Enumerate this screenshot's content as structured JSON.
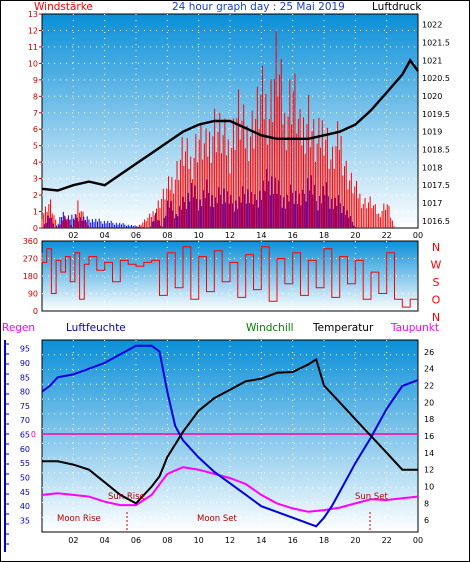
{
  "header": {
    "left_label": "Windstärke",
    "title": "24 hour graph day : 25 Mai 2019",
    "right_label": "Luftdruck"
  },
  "legend_bottom": {
    "regen": "Regen",
    "luftfeuchte": "Luftfeuchte",
    "windchill": "Windchill",
    "temperatur": "Temperatur",
    "taupunkt": "Taupunkt"
  },
  "compass": [
    "N",
    "W",
    "S",
    "O",
    "N"
  ],
  "annotations": {
    "moon_rise": "Moon Rise",
    "moon_set": "Moon Set",
    "sun_rise": "Sun Rise",
    "sun_set": "Sun Set"
  },
  "colors": {
    "wind": "#ff0000",
    "gust": "#0000ff",
    "pressure": "#000000",
    "humidity": "#0000e0",
    "temperature": "#000000",
    "dewpoint": "#ff00ff",
    "zero_line": "#ff00aa",
    "panel_top": "#0a8fd8",
    "panel_bottom": "#ffffff"
  },
  "chart_data": [
    {
      "type": "line",
      "name": "wind-pressure",
      "x_ticks": [
        "02",
        "04",
        "06",
        "08",
        "10",
        "12",
        "14",
        "16",
        "18",
        "20",
        "22",
        "00"
      ],
      "y_left_ticks": [
        "0",
        "1",
        "2",
        "3",
        "4",
        "5",
        "6",
        "7",
        "8",
        "9",
        "10",
        "11",
        "12",
        "13"
      ],
      "y_left_range": [
        0,
        13
      ],
      "y_right_ticks": [
        "1016.5",
        "1017",
        "1017.5",
        "1018",
        "1018.5",
        "1019",
        "1019.5",
        "1020",
        "1020.5",
        "1021",
        "1021.5",
        "1022"
      ],
      "y_right_range": [
        1016.3,
        1022.3
      ],
      "pressure": {
        "x": [
          0.0,
          1.0,
          2.0,
          3.0,
          4.0,
          5.0,
          6.0,
          7.0,
          8.0,
          9.0,
          10.0,
          11.0,
          12.0,
          13.0,
          14.0,
          15.0,
          16.0,
          17.0,
          18.0,
          19.0,
          20.0,
          21.0,
          22.0,
          23.0,
          23.5,
          24.0
        ],
        "y": [
          1017.4,
          1017.35,
          1017.5,
          1017.6,
          1017.5,
          1017.8,
          1018.1,
          1018.4,
          1018.7,
          1019.0,
          1019.2,
          1019.3,
          1019.3,
          1019.1,
          1018.9,
          1018.8,
          1018.8,
          1018.8,
          1018.9,
          1019.0,
          1019.2,
          1019.6,
          1020.1,
          1020.6,
          1021.0,
          1020.7
        ]
      },
      "wind": {
        "x": [
          0.0,
          0.5,
          1.0,
          1.5,
          2.0,
          2.3,
          3.0,
          4.0,
          5.0,
          6.0,
          7.0,
          7.5,
          8.0,
          8.5,
          9.0,
          9.5,
          10.0,
          10.5,
          11.0,
          11.5,
          12.0,
          12.5,
          13.0,
          13.5,
          14.0,
          14.5,
          15.0,
          15.5,
          16.0,
          16.5,
          17.0,
          17.5,
          18.0,
          18.5,
          19.0,
          19.5,
          20.0,
          20.5,
          21.0,
          21.5,
          22.0,
          22.5,
          23.0,
          24.0
        ],
        "y": [
          1,
          2,
          0,
          1,
          0,
          2,
          0,
          0,
          0,
          0,
          1,
          2,
          3,
          4,
          6,
          5,
          7,
          6,
          8,
          7,
          6,
          9,
          7,
          8,
          10,
          9,
          13,
          8,
          11,
          7,
          9,
          6,
          8,
          5,
          7,
          4,
          3,
          2,
          2,
          1,
          2,
          0,
          0,
          0
        ]
      },
      "gust": {
        "x": [
          0.0,
          0.4,
          0.8,
          1.2,
          6.8,
          7.2,
          7.6,
          8.0,
          8.5,
          9.0,
          9.5,
          10.0,
          10.5,
          11.0,
          11.5,
          12.0,
          12.5,
          13.0,
          13.5,
          14.0,
          14.5,
          15.0,
          15.5,
          16.0,
          16.5,
          17.0,
          17.5,
          18.0,
          18.5,
          19.0,
          19.5,
          20.0,
          24.0
        ],
        "y": [
          0,
          1,
          0,
          1,
          0,
          1,
          0,
          2,
          1,
          2,
          3,
          2,
          3,
          2,
          3,
          2,
          2,
          3,
          2,
          3,
          4,
          3,
          2,
          3,
          2,
          4,
          2,
          3,
          2,
          2,
          1,
          0,
          0
        ]
      }
    },
    {
      "type": "scatter",
      "name": "wind-direction",
      "y_ticks": [
        "0",
        "90",
        "180",
        "270",
        "360"
      ],
      "y_range": [
        0,
        360
      ],
      "x": [
        0.0,
        0.3,
        0.6,
        0.9,
        1.2,
        1.5,
        1.8,
        2.1,
        2.4,
        2.7,
        3.0,
        3.5,
        4.0,
        4.5,
        5.0,
        5.5,
        6.0,
        6.5,
        7.0,
        7.5,
        8.0,
        8.5,
        9.0,
        9.5,
        10.0,
        10.5,
        11.0,
        11.5,
        12.0,
        12.5,
        13.0,
        13.5,
        14.0,
        14.5,
        15.0,
        15.5,
        16.0,
        16.5,
        17.0,
        17.5,
        18.0,
        18.5,
        19.0,
        19.5,
        20.0,
        20.5,
        21.0,
        21.5,
        22.0,
        22.5,
        23.0,
        23.5,
        24.0
      ],
      "y": [
        300,
        250,
        320,
        90,
        260,
        200,
        280,
        150,
        300,
        60,
        240,
        280,
        210,
        250,
        150,
        260,
        240,
        230,
        250,
        260,
        80,
        300,
        120,
        330,
        60,
        280,
        100,
        310,
        150,
        250,
        70,
        290,
        110,
        330,
        50,
        270,
        140,
        300,
        80,
        260,
        120,
        320,
        70,
        280,
        140,
        260,
        60,
        200,
        90,
        300,
        60,
        20,
        60
      ]
    },
    {
      "type": "line",
      "name": "humidity-temperature",
      "x_ticks": [
        "02",
        "04",
        "06",
        "08",
        "10",
        "12",
        "14",
        "16",
        "18",
        "20",
        "22",
        "00"
      ],
      "y_left_ticks": [
        "35",
        "40",
        "45",
        "50",
        "55",
        "60",
        "65",
        "70",
        "75",
        "80",
        "85",
        "90",
        "95"
      ],
      "y_left_range": [
        31,
        98
      ],
      "y_zero_label": "0",
      "y_right_ticks": [
        "6",
        "8",
        "10",
        "12",
        "14",
        "16",
        "18",
        "20",
        "22",
        "24",
        "26"
      ],
      "y_right_range": [
        4.6,
        27.4
      ],
      "humidity": {
        "x": [
          0.0,
          0.5,
          1.0,
          2.0,
          3.0,
          4.0,
          5.0,
          6.0,
          7.0,
          7.5,
          8.0,
          8.5,
          9.0,
          9.5,
          10.0,
          11.0,
          12.0,
          13.0,
          14.0,
          15.0,
          16.0,
          17.0,
          17.5,
          18.0,
          18.5,
          19.0,
          20.0,
          21.0,
          22.0,
          23.0,
          24.0
        ],
        "y": [
          80,
          82,
          85,
          86,
          88,
          90,
          93,
          96,
          96,
          94,
          80,
          68,
          63,
          60,
          57,
          52,
          48,
          44,
          40,
          38,
          36,
          34,
          33,
          36,
          40,
          45,
          55,
          64,
          74,
          82,
          84
        ]
      },
      "temperature": {
        "x": [
          0.0,
          1.0,
          2.0,
          3.0,
          4.0,
          5.0,
          6.0,
          7.0,
          7.5,
          8.0,
          9.0,
          10.0,
          11.0,
          12.0,
          13.0,
          14.0,
          15.0,
          16.0,
          17.0,
          17.5,
          18.0,
          19.0,
          20.0,
          21.0,
          22.0,
          23.0,
          24.0
        ],
        "y": [
          13,
          13,
          12.6,
          12,
          10.5,
          9,
          8,
          10,
          11.2,
          13.5,
          16.5,
          19,
          20.5,
          21.5,
          22.5,
          22.8,
          23.5,
          23.6,
          24.5,
          25.1,
          22,
          20,
          18,
          16,
          14,
          12,
          12
        ]
      },
      "dewpoint": {
        "x": [
          0.0,
          1.0,
          2.0,
          3.0,
          4.0,
          5.0,
          6.0,
          7.0,
          8.0,
          9.0,
          10.0,
          11.0,
          12.0,
          13.0,
          14.0,
          15.0,
          16.0,
          17.0,
          18.0,
          19.0,
          20.0,
          21.0,
          22.0,
          23.0,
          24.0
        ],
        "y": [
          9,
          9.2,
          9,
          8.8,
          8.2,
          7.8,
          7.8,
          9,
          11.5,
          12.3,
          12,
          11.5,
          11,
          10.3,
          9,
          8,
          7.4,
          7,
          7.2,
          7.5,
          8,
          8.5,
          8.4,
          8.6,
          8.8
        ]
      }
    }
  ]
}
